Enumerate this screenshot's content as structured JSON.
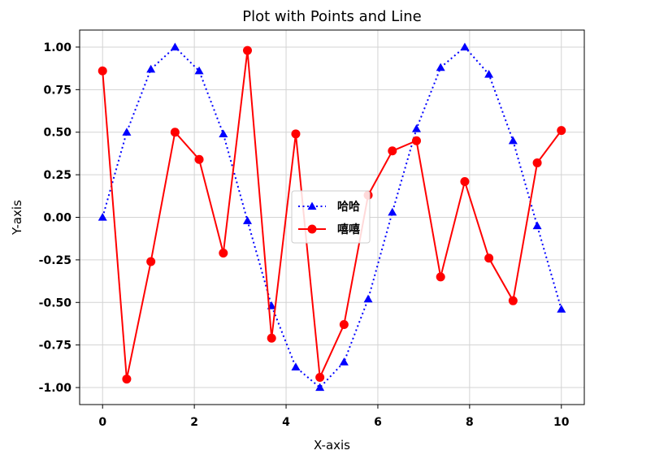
{
  "chart_data": {
    "type": "line",
    "title": "Plot with Points and Line",
    "xlabel": "X-axis",
    "ylabel": "Y-axis",
    "xlim": [
      -0.5,
      10.5
    ],
    "ylim": [
      -1.1,
      1.1
    ],
    "xticks": [
      0,
      2,
      4,
      6,
      8,
      10
    ],
    "xtick_labels": [
      "0",
      "2",
      "4",
      "6",
      "8",
      "10"
    ],
    "yticks": [
      -1.0,
      -0.75,
      -0.5,
      -0.25,
      0.0,
      0.25,
      0.5,
      0.75,
      1.0
    ],
    "ytick_labels": [
      "-1.00",
      "-0.75",
      "-0.50",
      "-0.25",
      "0.00",
      "0.25",
      "0.50",
      "0.75",
      "1.00"
    ],
    "grid": true,
    "legend_position": "center",
    "x": [
      0,
      0.526,
      1.053,
      1.579,
      2.105,
      2.632,
      3.158,
      3.684,
      4.211,
      4.737,
      5.263,
      5.789,
      6.316,
      6.842,
      7.368,
      7.895,
      8.421,
      8.947,
      9.474,
      10.0
    ],
    "series": [
      {
        "name": "哈哈",
        "color": "#0000ff",
        "line_style": "dotted",
        "marker": "triangle",
        "values": [
          0.0,
          0.5,
          0.87,
          1.0,
          0.86,
          0.49,
          -0.02,
          -0.52,
          -0.88,
          -1.0,
          -0.85,
          -0.48,
          0.03,
          0.52,
          0.88,
          1.0,
          0.84,
          0.45,
          -0.05,
          -0.54
        ]
      },
      {
        "name": "嘻嘻",
        "color": "#ff0000",
        "line_style": "solid",
        "marker": "circle",
        "values": [
          0.86,
          -0.95,
          -0.26,
          0.5,
          0.34,
          -0.21,
          0.98,
          -0.71,
          0.49,
          -0.94,
          -0.63,
          0.13,
          0.39,
          0.45,
          -0.35,
          0.21,
          -0.24,
          -0.49,
          0.32,
          0.51
        ]
      }
    ]
  }
}
